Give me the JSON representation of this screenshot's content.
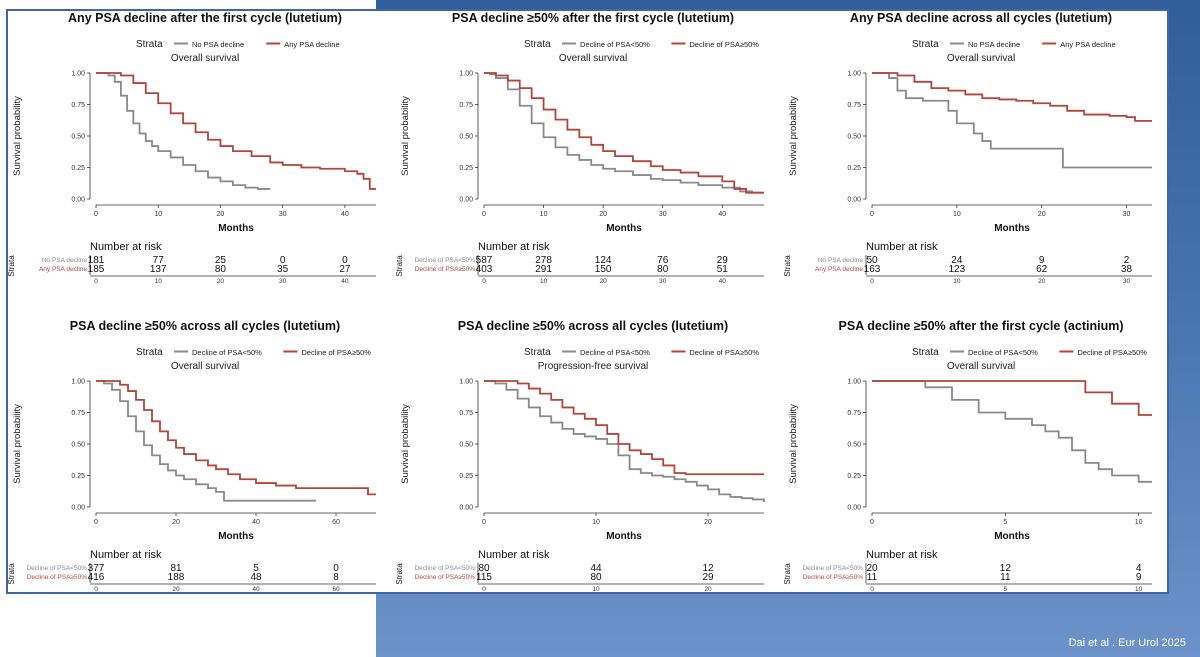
{
  "citation": "Dai  et al . Eur Urol 2025",
  "colors": {
    "gray": "#8a8a8a",
    "red": "#b5443a",
    "frame": "#3f66a6"
  },
  "common": {
    "strata_label": "Strata",
    "ylabel": "Survival probability",
    "xlabel": "Months",
    "risk_title": "Number at risk",
    "risk_axis_label": "Strata"
  },
  "chart_data": [
    {
      "type": "line",
      "title": "Any PSA decline after the first cycle (lutetium)",
      "subtitle": "Overall survival",
      "xlim": [
        0,
        45
      ],
      "xticks": [
        0,
        10,
        20,
        30,
        40
      ],
      "ylim": [
        0,
        1
      ],
      "yticks": [
        "0.00",
        "0.25",
        "0.50",
        "0.75",
        "1.00"
      ],
      "series": [
        {
          "name": "No PSA decline",
          "color": "gray",
          "x": [
            0,
            2,
            3,
            4,
            5,
            6,
            7,
            8,
            9,
            10,
            12,
            14,
            16,
            18,
            20,
            22,
            24,
            26,
            28
          ],
          "y": [
            1.0,
            0.98,
            0.93,
            0.82,
            0.7,
            0.6,
            0.52,
            0.46,
            0.42,
            0.38,
            0.33,
            0.27,
            0.22,
            0.17,
            0.14,
            0.11,
            0.09,
            0.08,
            0.08
          ]
        },
        {
          "name": "Any PSA decline",
          "color": "red",
          "x": [
            0,
            2,
            4,
            6,
            8,
            10,
            12,
            14,
            16,
            18,
            20,
            22,
            25,
            28,
            30,
            33,
            36,
            40,
            42,
            43,
            44,
            45
          ],
          "y": [
            1.0,
            1.0,
            0.98,
            0.92,
            0.84,
            0.76,
            0.68,
            0.6,
            0.53,
            0.47,
            0.42,
            0.38,
            0.34,
            0.29,
            0.27,
            0.25,
            0.24,
            0.22,
            0.2,
            0.16,
            0.08,
            0.08
          ]
        }
      ],
      "risk_table": [
        {
          "label": "No PSA decline",
          "color": "gray",
          "values": [
            "181",
            "77",
            "25",
            "0",
            "0"
          ]
        },
        {
          "label": "Any PSA decline",
          "color": "red",
          "values": [
            "185",
            "137",
            "80",
            "35",
            "27"
          ]
        }
      ]
    },
    {
      "type": "line",
      "title": "PSA decline ≥50% after the first cycle (lutetium)",
      "subtitle": "Overall survival",
      "xlim": [
        0,
        47
      ],
      "xticks": [
        0,
        10,
        20,
        30,
        40
      ],
      "ylim": [
        0,
        1
      ],
      "yticks": [
        "0.00",
        "0.25",
        "0.50",
        "0.75",
        "1.00"
      ],
      "series": [
        {
          "name": "Decline of PSA<50%",
          "color": "gray",
          "x": [
            0,
            1,
            2,
            4,
            6,
            8,
            10,
            12,
            14,
            16,
            18,
            20,
            22,
            25,
            28,
            30,
            33,
            36,
            40,
            43,
            45,
            47
          ],
          "y": [
            1.0,
            0.99,
            0.96,
            0.87,
            0.74,
            0.6,
            0.49,
            0.41,
            0.35,
            0.31,
            0.27,
            0.24,
            0.22,
            0.19,
            0.16,
            0.15,
            0.13,
            0.11,
            0.09,
            0.06,
            0.05,
            0.05
          ]
        },
        {
          "name": "Decline of PSA≥50%",
          "color": "red",
          "x": [
            0,
            2,
            4,
            6,
            8,
            10,
            12,
            14,
            16,
            18,
            20,
            22,
            25,
            28,
            30,
            33,
            36,
            40,
            42,
            44,
            47
          ],
          "y": [
            1.0,
            0.98,
            0.94,
            0.88,
            0.8,
            0.71,
            0.63,
            0.55,
            0.49,
            0.43,
            0.38,
            0.34,
            0.3,
            0.26,
            0.23,
            0.21,
            0.18,
            0.14,
            0.08,
            0.05,
            0.05
          ]
        }
      ],
      "risk_table": [
        {
          "label": "Decline of PSA<50%",
          "color": "gray",
          "values": [
            "587",
            "278",
            "124",
            "76",
            "29"
          ]
        },
        {
          "label": "Decline of PSA≥50%",
          "color": "red",
          "values": [
            "403",
            "291",
            "150",
            "80",
            "51"
          ]
        }
      ]
    },
    {
      "type": "line",
      "title": "Any PSA decline across all cycles (lutetium)",
      "subtitle": "Overall survival",
      "xlim": [
        0,
        33
      ],
      "xticks": [
        0,
        10,
        20,
        30
      ],
      "ylim": [
        0,
        1
      ],
      "yticks": [
        "0.00",
        "0.25",
        "0.50",
        "0.75",
        "1.00"
      ],
      "series": [
        {
          "name": "No PSA decline",
          "color": "gray",
          "x": [
            0,
            2,
            3,
            4,
            6,
            8,
            9,
            10,
            12,
            13,
            14,
            15,
            18,
            20,
            22,
            22.5,
            25,
            28,
            30,
            33
          ],
          "y": [
            1.0,
            0.96,
            0.86,
            0.8,
            0.78,
            0.78,
            0.7,
            0.6,
            0.52,
            0.46,
            0.4,
            0.4,
            0.4,
            0.4,
            0.4,
            0.25,
            0.25,
            0.25,
            0.25,
            0.25
          ]
        },
        {
          "name": "Any PSA decline",
          "color": "red",
          "x": [
            0,
            3,
            5,
            7,
            9,
            11,
            13,
            15,
            17,
            19,
            21,
            23,
            25,
            28,
            30,
            31,
            33
          ],
          "y": [
            1.0,
            0.98,
            0.93,
            0.88,
            0.86,
            0.83,
            0.8,
            0.79,
            0.78,
            0.76,
            0.74,
            0.7,
            0.67,
            0.66,
            0.65,
            0.62,
            0.62
          ]
        }
      ],
      "risk_table": [
        {
          "label": "No PSA decline",
          "color": "gray",
          "values": [
            "50",
            "24",
            "9",
            "2"
          ]
        },
        {
          "label": "Any PSA decline",
          "color": "red",
          "values": [
            "163",
            "123",
            "62",
            "38"
          ]
        }
      ]
    },
    {
      "type": "line",
      "title": "PSA decline ≥50% across all cycles (lutetium)",
      "subtitle": "Overall survival",
      "xlim": [
        0,
        70
      ],
      "xticks": [
        0,
        20,
        40,
        60
      ],
      "ylim": [
        0,
        1
      ],
      "yticks": [
        "0.00",
        "0.25",
        "0.50",
        "0.75",
        "1.00"
      ],
      "series": [
        {
          "name": "Decline of PSA<50%",
          "color": "gray",
          "x": [
            0,
            2,
            4,
            6,
            8,
            10,
            12,
            14,
            16,
            18,
            20,
            22,
            25,
            28,
            30,
            32,
            35,
            40,
            45,
            50,
            55
          ],
          "y": [
            1.0,
            0.98,
            0.93,
            0.84,
            0.72,
            0.6,
            0.49,
            0.41,
            0.34,
            0.29,
            0.25,
            0.22,
            0.18,
            0.15,
            0.12,
            0.05,
            0.05,
            0.05,
            0.05,
            0.05,
            0.05
          ]
        },
        {
          "name": "Decline of PSA≥50%",
          "color": "red",
          "x": [
            0,
            4,
            6,
            8,
            10,
            12,
            14,
            16,
            18,
            20,
            22,
            25,
            28,
            30,
            33,
            36,
            40,
            45,
            50,
            55,
            60,
            65,
            68,
            70
          ],
          "y": [
            1.0,
            1.0,
            0.97,
            0.92,
            0.85,
            0.77,
            0.68,
            0.6,
            0.53,
            0.47,
            0.42,
            0.37,
            0.33,
            0.3,
            0.26,
            0.22,
            0.19,
            0.17,
            0.15,
            0.15,
            0.15,
            0.15,
            0.1,
            0.1
          ]
        }
      ],
      "risk_table": [
        {
          "label": "Decline of PSA<50%",
          "color": "gray",
          "values": [
            "377",
            "81",
            "5",
            "0"
          ]
        },
        {
          "label": "Decline of PSA≥50%",
          "color": "red",
          "values": [
            "416",
            "188",
            "48",
            "8"
          ]
        }
      ]
    },
    {
      "type": "line",
      "title": "PSA decline ≥50% across all cycles (lutetium)",
      "subtitle": "Progression-free survival",
      "xlim": [
        0,
        25
      ],
      "xticks": [
        0,
        10,
        20
      ],
      "ylim": [
        0,
        1
      ],
      "yticks": [
        "0.00",
        "0.25",
        "0.50",
        "0.75",
        "1.00"
      ],
      "series": [
        {
          "name": "Decline of PSA<50%",
          "color": "gray",
          "x": [
            0,
            1,
            2,
            3,
            4,
            5,
            6,
            7,
            8,
            9,
            10,
            11,
            12,
            13,
            14,
            15,
            16,
            17,
            18,
            19,
            20,
            21,
            22,
            23,
            24,
            25
          ],
          "y": [
            1.0,
            0.98,
            0.93,
            0.86,
            0.79,
            0.72,
            0.67,
            0.62,
            0.58,
            0.56,
            0.54,
            0.5,
            0.41,
            0.3,
            0.27,
            0.25,
            0.24,
            0.22,
            0.2,
            0.17,
            0.14,
            0.1,
            0.08,
            0.07,
            0.06,
            0.04
          ]
        },
        {
          "name": "Decline of PSA≥50%",
          "color": "red",
          "x": [
            0,
            2,
            3,
            4,
            5,
            6,
            7,
            8,
            9,
            10,
            11,
            12,
            13,
            14,
            15,
            16,
            17,
            18,
            20,
            22,
            24,
            25
          ],
          "y": [
            1.0,
            1.0,
            0.98,
            0.94,
            0.9,
            0.85,
            0.79,
            0.74,
            0.7,
            0.65,
            0.58,
            0.5,
            0.45,
            0.42,
            0.38,
            0.33,
            0.27,
            0.26,
            0.26,
            0.26,
            0.26,
            0.26
          ]
        }
      ],
      "risk_table": [
        {
          "label": "Decline of PSA<50%",
          "color": "gray",
          "values": [
            "80",
            "44",
            "12"
          ]
        },
        {
          "label": "Decline of PSA≥50%",
          "color": "red",
          "values": [
            "115",
            "80",
            "29"
          ]
        }
      ]
    },
    {
      "type": "line",
      "title": "PSA decline ≥50% after the first cycle (actinium)",
      "subtitle": "Overall survival",
      "xlim": [
        0,
        10.5
      ],
      "xticks": [
        0,
        5,
        10
      ],
      "ylim": [
        0,
        1
      ],
      "yticks": [
        "0.00",
        "0.25",
        "0.50",
        "0.75",
        "1.00"
      ],
      "series": [
        {
          "name": "Decline of PSA<50%",
          "color": "gray",
          "x": [
            0,
            2,
            3,
            4,
            5,
            6,
            6.5,
            7,
            7.5,
            8,
            8.5,
            9,
            10,
            10.5
          ],
          "y": [
            1.0,
            0.95,
            0.85,
            0.75,
            0.7,
            0.65,
            0.6,
            0.55,
            0.45,
            0.35,
            0.3,
            0.25,
            0.2,
            0.2
          ]
        },
        {
          "name": "Decline of PSA≥50%",
          "color": "red",
          "x": [
            0,
            7,
            8,
            9,
            10,
            10.5
          ],
          "y": [
            1.0,
            1.0,
            0.91,
            0.82,
            0.73,
            0.73
          ]
        }
      ],
      "risk_table": [
        {
          "label": "Decline of PSA<50%",
          "color": "gray",
          "values": [
            "20",
            "12",
            "4"
          ]
        },
        {
          "label": "Decline of PSA≥50%",
          "color": "red",
          "values": [
            "11",
            "11",
            "9"
          ]
        }
      ]
    }
  ]
}
